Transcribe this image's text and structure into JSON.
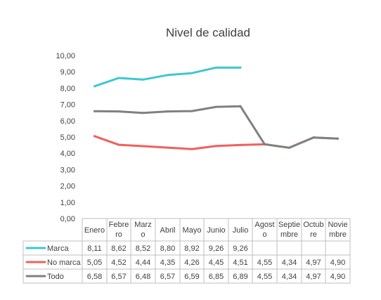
{
  "chart_data": {
    "type": "line",
    "title": "Nivel de calidad",
    "categories": [
      "Enero",
      "Febrero",
      "Marzo",
      "Abril",
      "Mayo",
      "Junio",
      "Julio",
      "Agosto",
      "Septiembre",
      "Octubre",
      "Noviembre"
    ],
    "category_lines": [
      [
        "Enero"
      ],
      [
        "Febre",
        "ro"
      ],
      [
        "Marz",
        "o"
      ],
      [
        "Abril"
      ],
      [
        "Mayo"
      ],
      [
        "Junio"
      ],
      [
        "Julio"
      ],
      [
        "Agost",
        "o"
      ],
      [
        "Septie",
        "mbre"
      ],
      [
        "Octub",
        "re"
      ],
      [
        "Novie",
        "mbre"
      ]
    ],
    "ylim": [
      0,
      10
    ],
    "yticks": [
      "0,00",
      "1,00",
      "2,00",
      "3,00",
      "4,00",
      "5,00",
      "6,00",
      "7,00",
      "8,00",
      "9,00",
      "10,00"
    ],
    "grid": false,
    "legend": "data-table",
    "series": [
      {
        "name": "Marca",
        "color": "#3CC8D2",
        "values": [
          8.11,
          8.62,
          8.52,
          8.8,
          8.92,
          9.26,
          9.26,
          null,
          null,
          null,
          null
        ],
        "labels": [
          "8,11",
          "8,62",
          "8,52",
          "8,80",
          "8,92",
          "9,26",
          "9,26",
          "",
          "",
          "",
          ""
        ]
      },
      {
        "name": "No marca",
        "color": "#F0605D",
        "values": [
          5.05,
          4.52,
          4.44,
          4.35,
          4.26,
          4.45,
          4.51,
          4.55,
          4.34,
          4.97,
          4.9
        ],
        "labels": [
          "5,05",
          "4,52",
          "4,44",
          "4,35",
          "4,26",
          "4,45",
          "4,51",
          "4,55",
          "4,34",
          "4,97",
          "4,90"
        ]
      },
      {
        "name": "Todo",
        "color": "#808080",
        "values": [
          6.58,
          6.57,
          6.48,
          6.57,
          6.59,
          6.85,
          6.89,
          4.55,
          4.34,
          4.97,
          4.9
        ],
        "labels": [
          "6,58",
          "6,57",
          "6,48",
          "6,57",
          "6,59",
          "6,85",
          "6,89",
          "4,55",
          "4,34",
          "4,97",
          "4,90"
        ]
      }
    ]
  }
}
